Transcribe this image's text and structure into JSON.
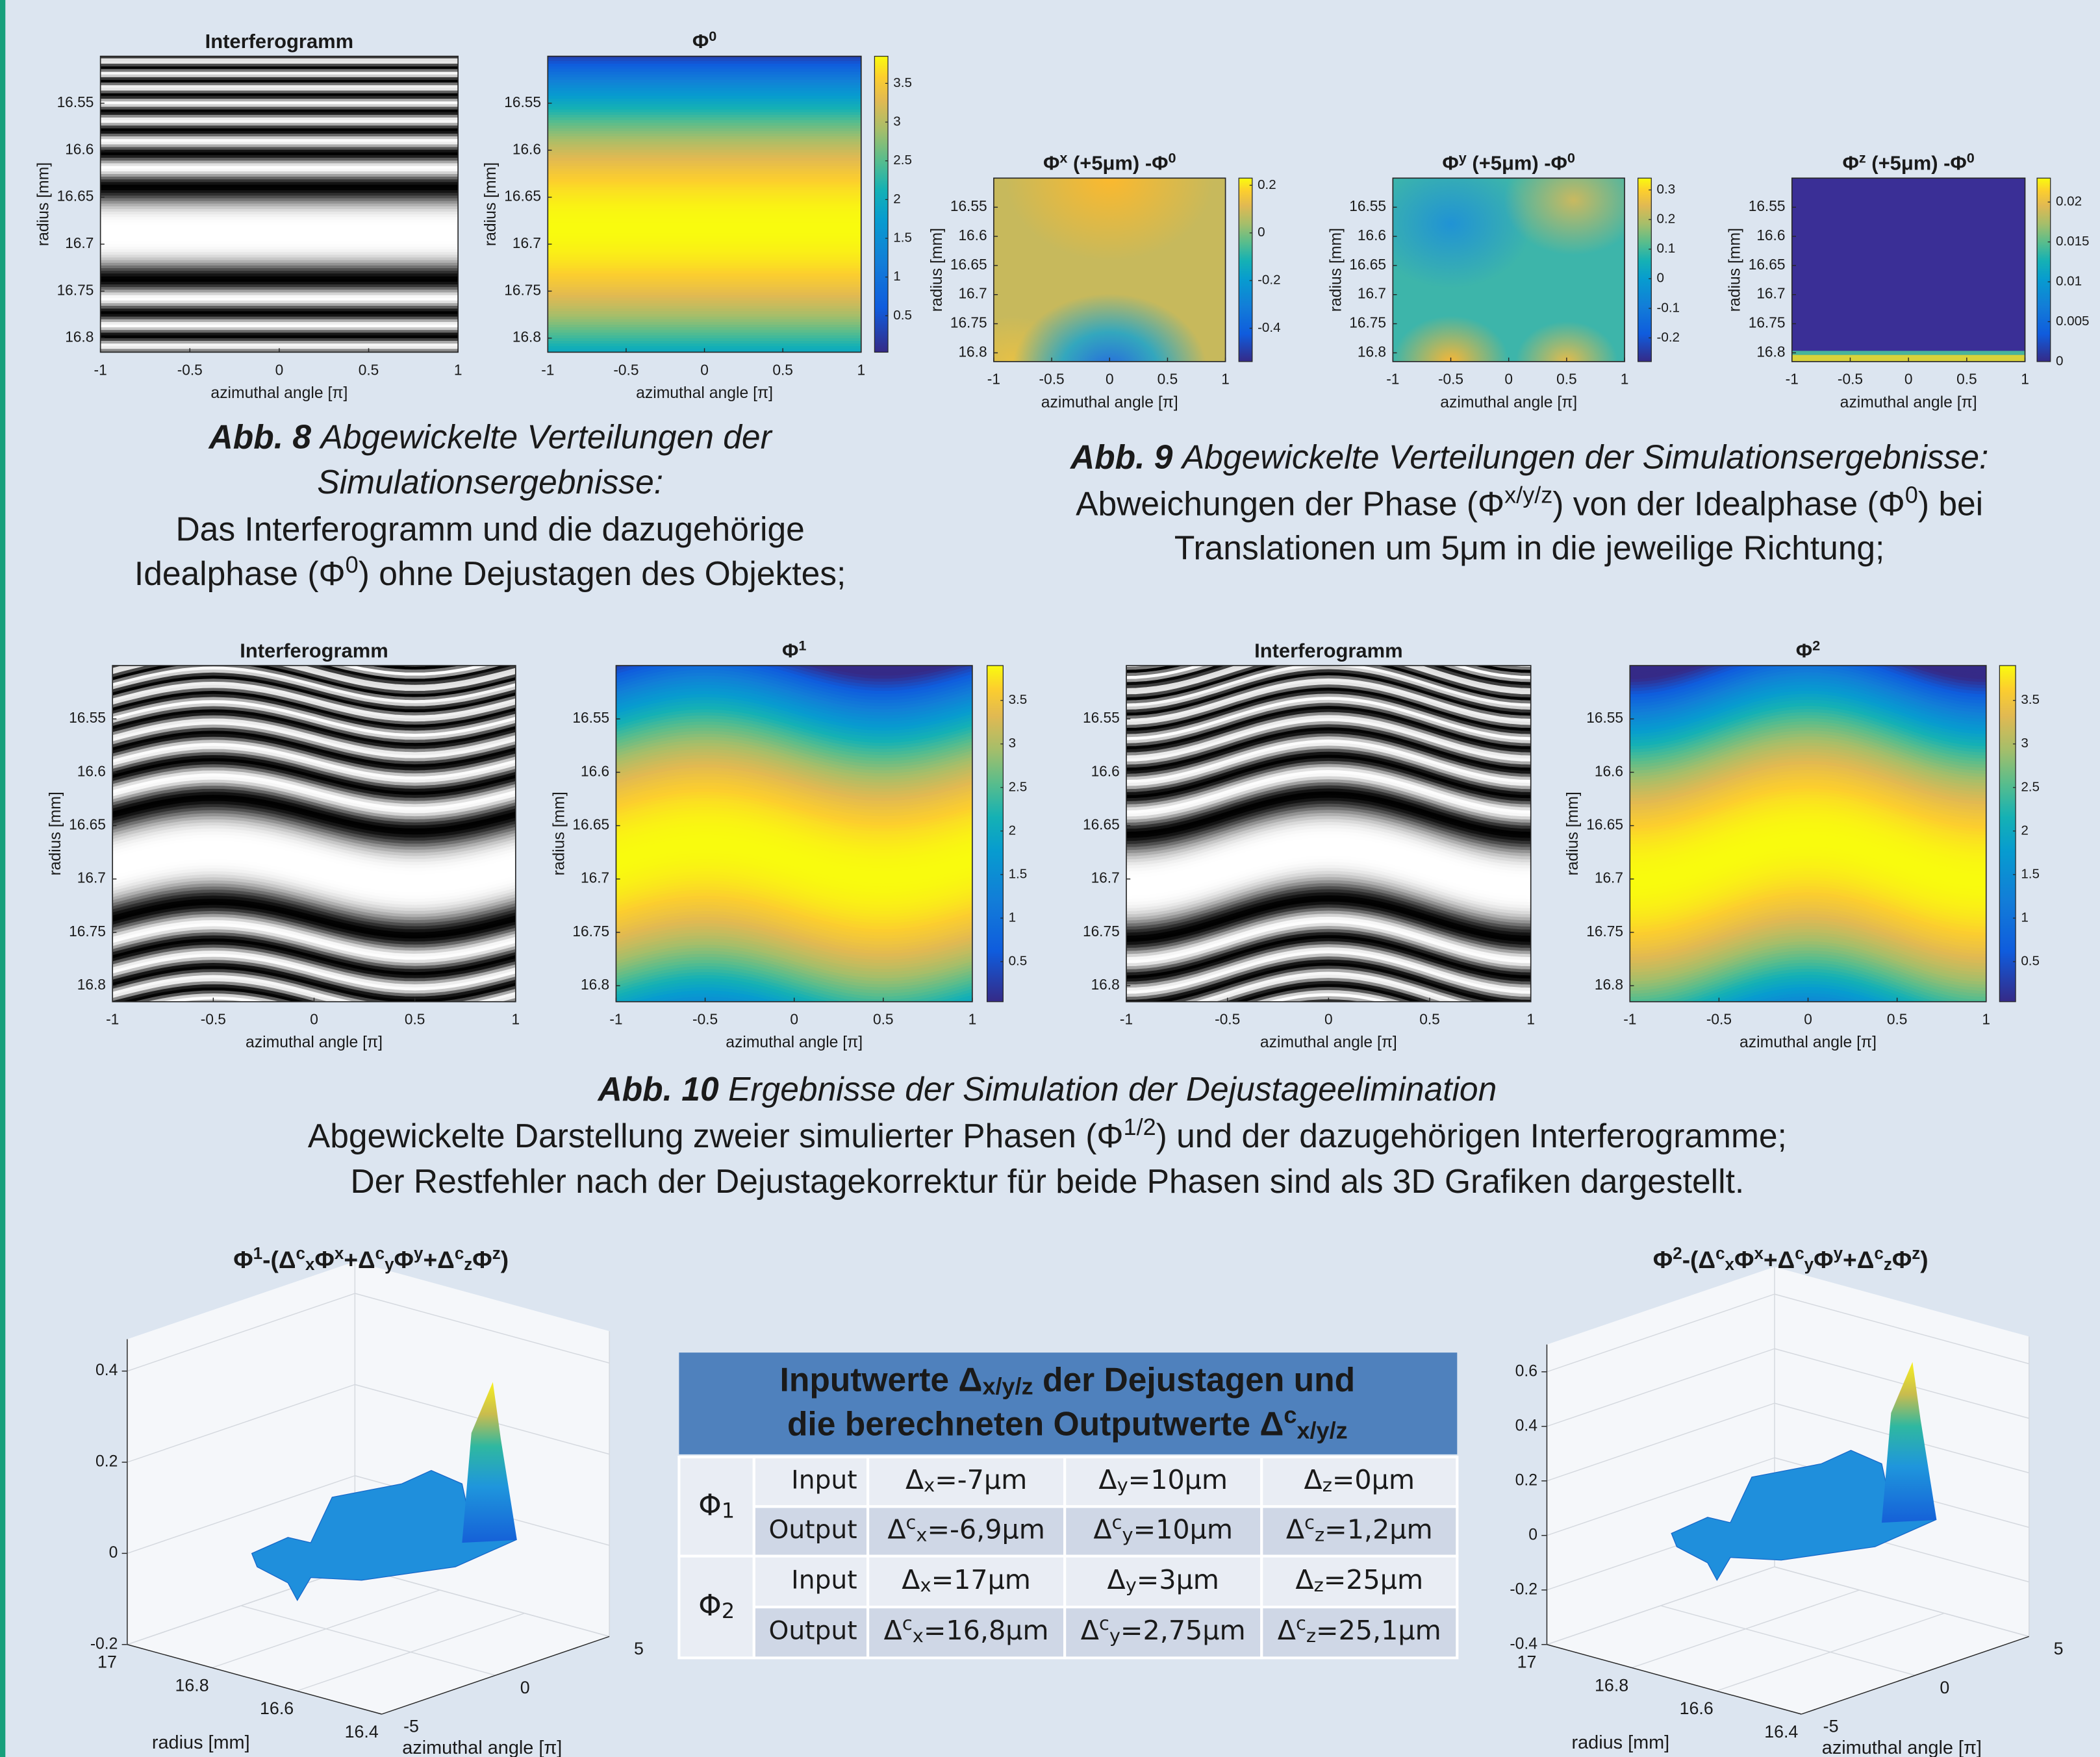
{
  "fig8": {
    "plots": [
      {
        "title": "Interferogramm",
        "xlabel": "azimuthal angle [π]",
        "ylabel": "radius [mm]",
        "xlim": [
          -1,
          1
        ],
        "ylim": [
          16.815,
          16.5
        ],
        "xticks": [
          -1,
          -0.5,
          0,
          0.5,
          1
        ],
        "yticks": [
          16.55,
          16.6,
          16.65,
          16.7,
          16.75,
          16.8
        ]
      },
      {
        "title": [
          {
            "text": "Φ"
          },
          {
            "sup": "0"
          }
        ],
        "xlabel": "azimuthal angle [π]",
        "ylabel": "radius [mm]",
        "xlim": [
          -1,
          1
        ],
        "ylim": [
          16.815,
          16.5
        ],
        "xticks": [
          -1,
          -0.5,
          0,
          0.5,
          1
        ],
        "yticks": [
          16.55,
          16.6,
          16.65,
          16.7,
          16.75,
          16.8
        ],
        "clim": [
          0.03,
          3.85
        ],
        "cticks": [
          0.5,
          1,
          1.5,
          2,
          2.5,
          3,
          3.5
        ]
      }
    ],
    "caption": {
      "label": "Abb. 8",
      "title": [
        "Abgewickelte Verteilungen der",
        "Simulationsergebnisse:"
      ],
      "text": [
        "Das Interferogramm und die dazugehörige",
        [
          {
            "text": "Idealphase (Φ"
          },
          {
            "sup": "0"
          },
          {
            "text": ") ohne Dejustagen des Objektes;"
          }
        ]
      ]
    }
  },
  "fig9": {
    "plots": [
      {
        "title": [
          {
            "text": "Φ"
          },
          {
            "sup": "x"
          },
          {
            "text": " (+5μm) -Φ"
          },
          {
            "sup": "0"
          }
        ],
        "xlabel": "azimuthal angle [π]",
        "ylabel": "radius [mm]",
        "xlim": [
          -1,
          1
        ],
        "ylim": [
          16.815,
          16.5
        ],
        "xticks": [
          -1,
          -0.5,
          0,
          0.5,
          1
        ],
        "yticks": [
          16.55,
          16.6,
          16.65,
          16.7,
          16.75,
          16.8
        ],
        "clim": [
          -0.54,
          0.23
        ],
        "cticks": [
          -0.4,
          -0.2,
          0,
          0.2
        ]
      },
      {
        "title": [
          {
            "text": "Φ"
          },
          {
            "sup": "y"
          },
          {
            "text": " (+5μm) -Φ"
          },
          {
            "sup": "0"
          }
        ],
        "xlabel": "azimuthal angle [π]",
        "ylabel": "radius [mm]",
        "xlim": [
          -1,
          1
        ],
        "ylim": [
          16.815,
          16.5
        ],
        "xticks": [
          -1,
          -0.5,
          0,
          0.5,
          1
        ],
        "yticks": [
          16.55,
          16.6,
          16.65,
          16.7,
          16.75,
          16.8
        ],
        "clim": [
          -0.28,
          0.34
        ],
        "cticks": [
          -0.2,
          -0.1,
          0,
          0.1,
          0.2,
          0.3
        ]
      },
      {
        "title": [
          {
            "text": "Φ"
          },
          {
            "sup": "z"
          },
          {
            "text": " (+5μm) -Φ"
          },
          {
            "sup": "0"
          }
        ],
        "xlabel": "azimuthal angle [π]",
        "ylabel": "radius [mm]",
        "xlim": [
          -1,
          1
        ],
        "ylim": [
          16.815,
          16.5
        ],
        "xticks": [
          -1,
          -0.5,
          0,
          0.5,
          1
        ],
        "yticks": [
          16.55,
          16.6,
          16.65,
          16.7,
          16.75,
          16.8
        ],
        "clim": [
          0,
          0.023
        ],
        "cticks": [
          0,
          0.005,
          0.01,
          0.015,
          0.02
        ]
      }
    ],
    "caption": {
      "label": "Abb. 9",
      "title": [
        "Abgewickelte Verteilungen der Simulationsergebnisse:"
      ],
      "text": [
        [
          {
            "text": "Abweichungen der Phase (Φ"
          },
          {
            "sup": "x/y/z"
          },
          {
            "text": ") von der Idealphase (Φ"
          },
          {
            "sup": "0"
          },
          {
            "text": ") bei"
          }
        ],
        "Translationen um 5μm in die jeweilige Richtung;"
      ]
    }
  },
  "fig10": {
    "plots": [
      {
        "title": "Interferogramm",
        "xlabel": "azimuthal angle [π]",
        "ylabel": "radius [mm]",
        "xlim": [
          -1,
          1
        ],
        "ylim": [
          16.815,
          16.5
        ],
        "xticks": [
          -1,
          -0.5,
          0,
          0.5,
          1
        ],
        "yticks": [
          16.55,
          16.6,
          16.65,
          16.7,
          16.75,
          16.8
        ]
      },
      {
        "title": [
          {
            "text": "Φ"
          },
          {
            "sup": "1"
          }
        ],
        "xlabel": "azimuthal angle [π]",
        "ylabel": "radius [mm]",
        "xlim": [
          -1,
          1
        ],
        "ylim": [
          16.815,
          16.5
        ],
        "xticks": [
          -1,
          -0.5,
          0,
          0.5,
          1
        ],
        "yticks": [
          16.55,
          16.6,
          16.65,
          16.7,
          16.75,
          16.8
        ],
        "clim": [
          0.04,
          3.9
        ],
        "cticks": [
          0.5,
          1,
          1.5,
          2,
          2.5,
          3,
          3.5
        ]
      },
      {
        "title": "Interferogramm",
        "xlabel": "azimuthal angle [π]",
        "xlim": [
          -1,
          1
        ],
        "ylim": [
          16.815,
          16.5
        ],
        "xticks": [
          -1,
          -0.5,
          0,
          0.5,
          1
        ],
        "yticks": [
          16.55,
          16.6,
          16.65,
          16.7,
          16.75,
          16.8
        ]
      },
      {
        "title": [
          {
            "text": "Φ"
          },
          {
            "sup": "2"
          }
        ],
        "xlabel": "azimuthal angle [π]",
        "ylabel": "radius [mm]",
        "xlim": [
          -1,
          1
        ],
        "ylim": [
          16.815,
          16.5
        ],
        "xticks": [
          -1,
          -0.5,
          0,
          0.5,
          1
        ],
        "yticks": [
          16.55,
          16.6,
          16.65,
          16.7,
          16.75,
          16.8
        ],
        "clim": [
          0.04,
          3.9
        ],
        "cticks": [
          0.5,
          1,
          1.5,
          2,
          2.5,
          3,
          3.5
        ]
      }
    ],
    "caption": {
      "label": "Abb. 10",
      "title": [
        "Ergebnisse der Simulation der Dejustageelimination"
      ],
      "text": [
        [
          {
            "text": "Abgewickelte Darstellung zweier simulierter Phasen (Φ"
          },
          {
            "sup": "1/2"
          },
          {
            "text": ") und der dazugehörigen Interferogramme;"
          }
        ],
        "Der Restfehler nach der Dejustagekorrektur für beide Phasen sind als 3D Grafiken dargestellt."
      ]
    }
  },
  "surfaces": [
    {
      "title": [
        {
          "text": "Φ"
        },
        {
          "sup": "1"
        },
        {
          "text": "-(Δ"
        },
        {
          "sup": "c"
        },
        {
          "sub": "x"
        },
        {
          "text": "Φ"
        },
        {
          "sup": "x"
        },
        {
          "text": "+Δ"
        },
        {
          "sup": "c"
        },
        {
          "sub": "y"
        },
        {
          "text": "Φ"
        },
        {
          "sup": "y"
        },
        {
          "text": "+Δ"
        },
        {
          "sup": "c"
        },
        {
          "sub": "z"
        },
        {
          "text": "Φ"
        },
        {
          "sup": "z"
        },
        {
          "text": ")"
        }
      ],
      "zlim": [
        -0.2,
        0.47
      ],
      "zticks": [
        -0.2,
        0,
        0.2,
        0.4
      ],
      "ylim": [
        17,
        16.4
      ],
      "yticks": [
        17,
        16.8,
        16.6,
        16.4
      ],
      "ylabel": "radius [mm]",
      "xlim": [
        -5,
        5
      ],
      "xticks": [
        -5,
        0,
        5
      ],
      "xlabel": "azimuthal angle [π]"
    },
    {
      "title": [
        {
          "text": "Φ"
        },
        {
          "sup": "2"
        },
        {
          "text": "-(Δ"
        },
        {
          "sup": "c"
        },
        {
          "sub": "x"
        },
        {
          "text": "Φ"
        },
        {
          "sup": "x"
        },
        {
          "text": "+Δ"
        },
        {
          "sup": "c"
        },
        {
          "sub": "y"
        },
        {
          "text": "Φ"
        },
        {
          "sup": "y"
        },
        {
          "text": "+Δ"
        },
        {
          "sup": "c"
        },
        {
          "sub": "z"
        },
        {
          "text": "Φ"
        },
        {
          "sup": "z"
        },
        {
          "text": ")"
        }
      ],
      "zlim": [
        -0.4,
        0.7
      ],
      "zticks": [
        -0.4,
        -0.2,
        0,
        0.2,
        0.4,
        0.6
      ],
      "ylim": [
        17,
        16.4
      ],
      "yticks": [
        17,
        16.8,
        16.6,
        16.4
      ],
      "ylabel": "radius [mm]",
      "xlim": [
        -5,
        5
      ],
      "xticks": [
        -5,
        0,
        5
      ],
      "xlabel": "azimuthal angle [π]"
    }
  ],
  "table": {
    "header": [
      [
        {
          "text": "Inputwerte Δ"
        },
        {
          "sub": "x/y/z"
        },
        {
          "text": " der Dejustagen und"
        }
      ],
      [
        {
          "text": "die berechneten Outputwerte Δ"
        },
        {
          "sup": "c"
        },
        {
          "sub": "x/y/z"
        }
      ]
    ],
    "groups": [
      {
        "phase": [
          {
            "text": "Φ"
          },
          {
            "sub": "1"
          }
        ],
        "rows": [
          [
            "Input",
            [
              {
                "text": "Δ"
              },
              {
                "sub": "x"
              },
              {
                "text": "=-7μm"
              }
            ],
            [
              {
                "text": "Δ"
              },
              {
                "sub": "y"
              },
              {
                "text": "=10μm"
              }
            ],
            [
              {
                "text": "Δ"
              },
              {
                "sub": "z"
              },
              {
                "text": "=0μm"
              }
            ]
          ],
          [
            "Output",
            [
              {
                "text": "Δ"
              },
              {
                "sup": "c"
              },
              {
                "sub": "x"
              },
              {
                "text": "=-6,9μm"
              }
            ],
            [
              {
                "text": "Δ"
              },
              {
                "sup": "c"
              },
              {
                "sub": "y"
              },
              {
                "text": "=10μm"
              }
            ],
            [
              {
                "text": "Δ"
              },
              {
                "sup": "c"
              },
              {
                "sub": "z"
              },
              {
                "text": "=1,2μm"
              }
            ]
          ]
        ]
      },
      {
        "phase": [
          {
            "text": "Φ"
          },
          {
            "sub": "2"
          }
        ],
        "rows": [
          [
            "Input",
            [
              {
                "text": "Δ"
              },
              {
                "sub": "x"
              },
              {
                "text": "=17μm"
              }
            ],
            [
              {
                "text": "Δ"
              },
              {
                "sub": "y"
              },
              {
                "text": "=3μm"
              }
            ],
            [
              {
                "text": "Δ"
              },
              {
                "sub": "z"
              },
              {
                "text": "=25μm"
              }
            ]
          ],
          [
            "Output",
            [
              {
                "text": "Δ"
              },
              {
                "sup": "c"
              },
              {
                "sub": "x"
              },
              {
                "text": "=16,8μm"
              }
            ],
            [
              {
                "text": "Δ"
              },
              {
                "sup": "c"
              },
              {
                "sub": "y"
              },
              {
                "text": "=2,75μm"
              }
            ],
            [
              {
                "text": "Δ"
              },
              {
                "sup": "c"
              },
              {
                "sub": "z"
              },
              {
                "text": "=25,1μm"
              }
            ]
          ]
        ]
      }
    ]
  }
}
